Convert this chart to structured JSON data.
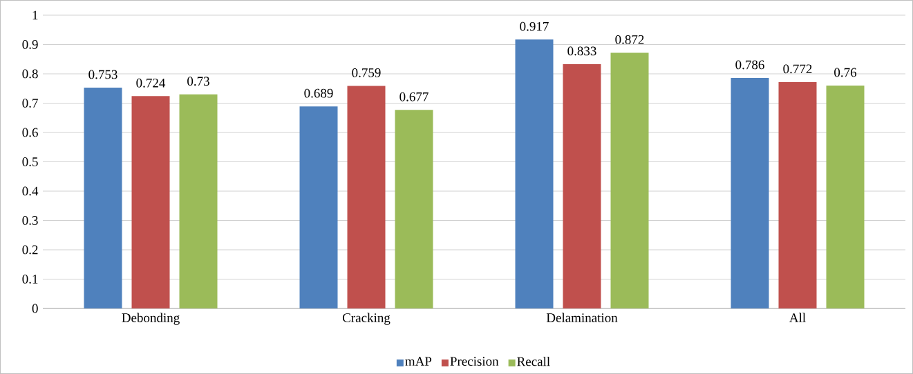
{
  "chart_data": {
    "type": "bar",
    "categories": [
      "Debonding",
      "Cracking",
      "Delamination",
      "All"
    ],
    "series": [
      {
        "name": "mAP",
        "color": "#4f81bd",
        "values": [
          0.753,
          0.689,
          0.917,
          0.786
        ]
      },
      {
        "name": "Precision",
        "color": "#c0504d",
        "values": [
          0.724,
          0.759,
          0.833,
          0.772
        ]
      },
      {
        "name": "Recall",
        "color": "#9bbb59",
        "values": [
          0.73,
          0.677,
          0.872,
          0.76
        ]
      }
    ],
    "ylim": [
      0,
      1
    ],
    "yticks": [
      0,
      0.1,
      0.2,
      0.3,
      0.4,
      0.5,
      0.6,
      0.7,
      0.8,
      0.9,
      1
    ],
    "grid": "y",
    "legend": "bottom",
    "data_labels": true
  }
}
